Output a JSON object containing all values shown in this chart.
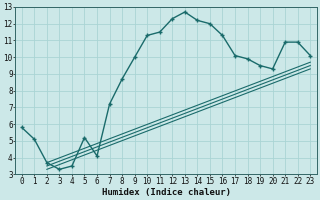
{
  "xlabel": "Humidex (Indice chaleur)",
  "ylabel": "",
  "bg_color": "#cce8e8",
  "line_color": "#1a6b6b",
  "grid_color": "#aad4d4",
  "xlim": [
    -0.5,
    23.5
  ],
  "ylim": [
    3,
    13
  ],
  "xticks": [
    0,
    1,
    2,
    3,
    4,
    5,
    6,
    7,
    8,
    9,
    10,
    11,
    12,
    13,
    14,
    15,
    16,
    17,
    18,
    19,
    20,
    21,
    22,
    23
  ],
  "yticks": [
    3,
    4,
    5,
    6,
    7,
    8,
    9,
    10,
    11,
    12,
    13
  ],
  "main_x": [
    0,
    1,
    2,
    3,
    4,
    5,
    6,
    7,
    8,
    9,
    10,
    11,
    12,
    13,
    14,
    15,
    16,
    17,
    18,
    19,
    20,
    21,
    22,
    23
  ],
  "main_y": [
    5.8,
    5.1,
    3.7,
    3.3,
    3.5,
    5.2,
    4.1,
    7.2,
    8.7,
    10.0,
    11.3,
    11.5,
    12.3,
    12.7,
    12.2,
    12.0,
    11.3,
    10.1,
    9.9,
    9.5,
    9.3,
    10.9,
    10.9,
    10.1
  ],
  "line2_x": [
    2,
    23
  ],
  "line2_y": [
    3.7,
    9.7
  ],
  "line3_x": [
    2,
    23
  ],
  "line3_y": [
    3.5,
    9.5
  ],
  "line4_x": [
    2,
    23
  ],
  "line4_y": [
    3.3,
    9.3
  ]
}
